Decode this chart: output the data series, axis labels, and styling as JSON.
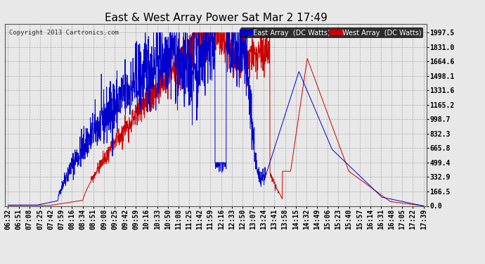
{
  "title": "East & West Array Power Sat Mar 2 17:49",
  "copyright": "Copyright 2013 Cartronics.com",
  "legend_east": "East Array  (DC Watts)",
  "legend_west": "West Array  (DC Watts)",
  "east_color": "#0000cc",
  "west_color": "#cc0000",
  "background_color": "#e8e8e8",
  "grid_color": "#999999",
  "yticks": [
    0.0,
    166.5,
    332.9,
    499.4,
    665.8,
    832.3,
    998.7,
    1165.2,
    1331.6,
    1498.1,
    1664.6,
    1831.0,
    1997.5
  ],
  "ylim": [
    0,
    2100
  ],
  "title_fontsize": 11,
  "tick_fontsize": 7,
  "xtick_labels": [
    "06:32",
    "06:51",
    "07:08",
    "07:25",
    "07:42",
    "07:59",
    "08:16",
    "08:34",
    "08:51",
    "09:08",
    "09:25",
    "09:42",
    "09:59",
    "10:16",
    "10:33",
    "10:50",
    "11:08",
    "11:25",
    "11:42",
    "11:59",
    "12:16",
    "12:33",
    "12:50",
    "13:07",
    "13:24",
    "13:41",
    "13:58",
    "14:15",
    "14:32",
    "14:49",
    "15:06",
    "15:23",
    "15:40",
    "15:57",
    "16:14",
    "16:31",
    "16:48",
    "17:05",
    "17:22",
    "17:39"
  ],
  "n_points": 2000,
  "east_seed": 42,
  "west_seed": 99
}
